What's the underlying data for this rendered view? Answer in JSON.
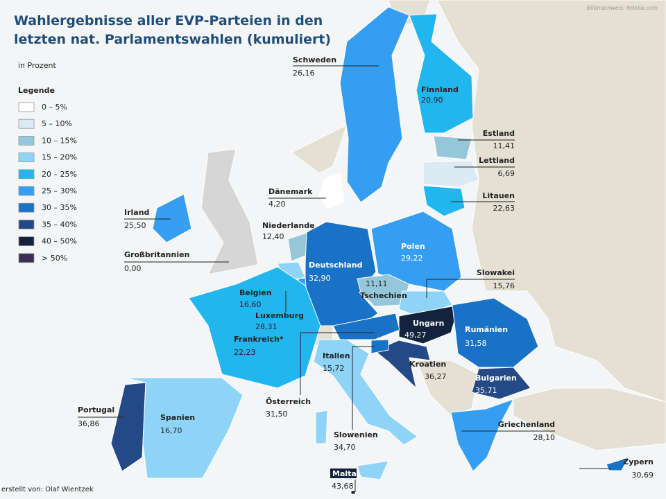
{
  "header": {
    "title_line1": "Wahlergebnisse  aller EVP-Parteien in den",
    "title_line2": "letzten nat. Parlamentswahlen (kumuliert)",
    "unit": "in Prozent",
    "credit": "Bildnachweis: fotolia.com"
  },
  "footer": {
    "author": "erstellt von: Olaf Wientzek"
  },
  "legend": {
    "title": "Legende",
    "items": [
      {
        "label": "0 – 5%",
        "color": "#ffffff"
      },
      {
        "label": "5 – 10%",
        "color": "#dbeaf3"
      },
      {
        "label": "10 – 15%",
        "color": "#96c6da"
      },
      {
        "label": "15 – 20%",
        "color": "#8fd4f6"
      },
      {
        "label": "20 – 25%",
        "color": "#22b6ef"
      },
      {
        "label": "25 – 30%",
        "color": "#369ef0"
      },
      {
        "label": "30 – 35%",
        "color": "#1a72c6"
      },
      {
        "label": "35 – 40%",
        "color": "#234a86"
      },
      {
        "label": "40 – 50%",
        "color": "#14233d"
      },
      {
        "label": "> 50%",
        "color": "#3d2d55"
      }
    ]
  },
  "countries": [
    {
      "name": "Schweden",
      "value": "26,16",
      "color": "#369ef0"
    },
    {
      "name": "Finnland",
      "value": "20,90",
      "color": "#22b6ef"
    },
    {
      "name": "Estland",
      "value": "11,41",
      "color": "#96c6da"
    },
    {
      "name": "Lettland",
      "value": "6,69",
      "color": "#dbeaf3"
    },
    {
      "name": "Litauen",
      "value": "22,63",
      "color": "#22b6ef"
    },
    {
      "name": "Dänemark",
      "value": "4,20",
      "color": "#ffffff"
    },
    {
      "name": "Irland",
      "value": "25,50",
      "color": "#369ef0"
    },
    {
      "name": "Niederlande",
      "value": "12,40",
      "color": "#96c6da"
    },
    {
      "name": "Großbritannien",
      "value": "0,00",
      "color": "#d6d6d6"
    },
    {
      "name": "Deutschland",
      "value": "32,90",
      "color": "#1a72c6"
    },
    {
      "name": "Polen",
      "value": "29,22",
      "color": "#369ef0"
    },
    {
      "name": "Belgien",
      "value": "16,60",
      "color": "#8fd4f6"
    },
    {
      "name": "Tschechien",
      "value": "11,11",
      "color": "#96c6da"
    },
    {
      "name": "Slowakei",
      "value": "15,76",
      "color": "#8fd4f6"
    },
    {
      "name": "Luxemburg",
      "value": "28,31",
      "color": "#369ef0"
    },
    {
      "name": "Ungarn",
      "value": "49,27",
      "color": "#14233d"
    },
    {
      "name": "Rumänien",
      "value": "31,58",
      "color": "#1a72c6"
    },
    {
      "name": "Frankreich*",
      "value": "22,23",
      "color": "#22b6ef"
    },
    {
      "name": "Italien",
      "value": "15,72",
      "color": "#8fd4f6"
    },
    {
      "name": "Kroatien",
      "value": "36,27",
      "color": "#234a86"
    },
    {
      "name": "Bulgarien",
      "value": "35,71",
      "color": "#234a86"
    },
    {
      "name": "Österreich",
      "value": "31,50",
      "color": "#1a72c6"
    },
    {
      "name": "Portugal",
      "value": "36,86",
      "color": "#234a86"
    },
    {
      "name": "Spanien",
      "value": "16,70",
      "color": "#8fd4f6"
    },
    {
      "name": "Griechenland",
      "value": "28,10",
      "color": "#369ef0"
    },
    {
      "name": "Slowenien",
      "value": "34,70",
      "color": "#1a72c6"
    },
    {
      "name": "Zypern",
      "value": "30,69",
      "color": "#1a72c6"
    },
    {
      "name": "Malta",
      "value": "43,68",
      "color": "#14233d"
    }
  ]
}
